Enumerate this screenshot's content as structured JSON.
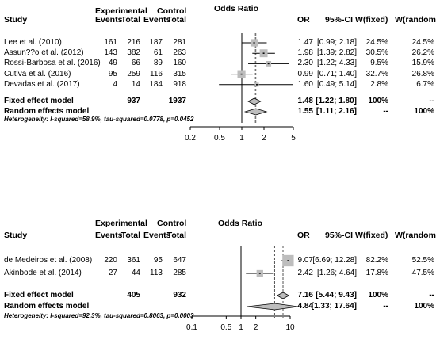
{
  "chart_data": [
    {
      "type": "forest",
      "headers": {
        "study": "Study",
        "group_exp": "Experimental",
        "group_ctrl": "Control",
        "events_exp": "Events",
        "total_exp": "Total",
        "events_ctrl": "Events",
        "total_ctrl": "Total",
        "title": "Odds Ratio",
        "or": "OR",
        "ci": "95%-CI",
        "w_fixed": "W(fixed)",
        "w_random": "W(random)"
      },
      "studies": [
        {
          "name": "Lee et al. (2010)",
          "ev_exp": "161",
          "n_exp": "216",
          "ev_ctrl": "187",
          "n_ctrl": "281",
          "or": 1.47,
          "lo": 0.99,
          "hi": 2.18,
          "or_text": "1.47",
          "ci_text": "[0.99; 2.18]",
          "w_fixed": "24.5%",
          "w_random": "24.5%",
          "weight": 24.5
        },
        {
          "name": "Assun??o et al. (2012)",
          "ev_exp": "143",
          "n_exp": "382",
          "ev_ctrl": "61",
          "n_ctrl": "263",
          "or": 1.98,
          "lo": 1.39,
          "hi": 2.82,
          "or_text": "1.98",
          "ci_text": "[1.39; 2.82]",
          "w_fixed": "30.5%",
          "w_random": "26.2%",
          "weight": 30.5
        },
        {
          "name": "Rossi-Barbosa et al. (2016)",
          "ev_exp": "49",
          "n_exp": "66",
          "ev_ctrl": "89",
          "n_ctrl": "160",
          "or": 2.3,
          "lo": 1.22,
          "hi": 4.33,
          "or_text": "2.30",
          "ci_text": "[1.22; 4.33]",
          "w_fixed": "9.5%",
          "w_random": "15.9%",
          "weight": 9.5
        },
        {
          "name": "Cutiva et al. (2016)",
          "ev_exp": "95",
          "n_exp": "259",
          "ev_ctrl": "116",
          "n_ctrl": "315",
          "or": 0.99,
          "lo": 0.71,
          "hi": 1.4,
          "or_text": "0.99",
          "ci_text": "[0.71; 1.40]",
          "w_fixed": "32.7%",
          "w_random": "26.8%",
          "weight": 32.7
        },
        {
          "name": "Devadas et al. (2017)",
          "ev_exp": "4",
          "n_exp": "14",
          "ev_ctrl": "184",
          "n_ctrl": "918",
          "or": 1.6,
          "lo": 0.49,
          "hi": 5.14,
          "or_text": "1.60",
          "ci_text": "[0.49; 5.14]",
          "w_fixed": "2.8%",
          "w_random": "6.7%",
          "weight": 2.8
        }
      ],
      "fixed": {
        "label": "Fixed effect model",
        "n_exp": "937",
        "n_ctrl": "1937",
        "or": 1.48,
        "lo": 1.22,
        "hi": 1.8,
        "or_text": "1.48",
        "ci_text": "[1.22; 1.80]",
        "w_fixed": "100%",
        "w_random": "--"
      },
      "random": {
        "label": "Random effects model",
        "or": 1.55,
        "lo": 1.11,
        "hi": 2.16,
        "or_text": "1.55",
        "ci_text": "[1.11; 2.16]",
        "w_fixed": "--",
        "w_random": "100%"
      },
      "heterogeneity": "Heterogeneity: I-squared=58.9%, tau-squared=0.0778, p=0.0452",
      "x_scale": "log",
      "x_ticks": [
        0.2,
        0.5,
        1,
        2,
        5
      ],
      "x_tick_labels": [
        "0.2",
        "0.5",
        "1",
        "2",
        "5"
      ],
      "xlim": [
        0.2,
        5
      ]
    },
    {
      "type": "forest",
      "headers": {
        "study": "Study",
        "group_exp": "Experimental",
        "group_ctrl": "Control",
        "events_exp": "Events",
        "total_exp": "Total",
        "events_ctrl": "Events",
        "total_ctrl": "Total",
        "title": "Odds Ratio",
        "or": "OR",
        "ci": "95%-CI",
        "w_fixed": "W(fixed)",
        "w_random": "W(random)"
      },
      "studies": [
        {
          "name": "de Medeiros et al. (2008)",
          "ev_exp": "220",
          "n_exp": "361",
          "ev_ctrl": "95",
          "n_ctrl": "647",
          "or": 9.07,
          "lo": 6.69,
          "hi": 12.28,
          "or_text": "9.07",
          "ci_text": "[6.69; 12.28]",
          "w_fixed": "82.2%",
          "w_random": "52.5%",
          "weight": 82.2
        },
        {
          "name": "Akinbode et al. (2014)",
          "ev_exp": "27",
          "n_exp": "44",
          "ev_ctrl": "113",
          "n_ctrl": "285",
          "or": 2.42,
          "lo": 1.26,
          "hi": 4.64,
          "or_text": "2.42",
          "ci_text": "[1.26; 4.64]",
          "w_fixed": "17.8%",
          "w_random": "47.5%",
          "weight": 17.8
        }
      ],
      "fixed": {
        "label": "Fixed effect model",
        "n_exp": "405",
        "n_ctrl": "932",
        "or": 7.16,
        "lo": 5.44,
        "hi": 9.43,
        "or_text": "7.16",
        "ci_text": "[5.44; 9.43]",
        "w_fixed": "100%",
        "w_random": "--"
      },
      "random": {
        "label": "Random effects model",
        "or": 4.84,
        "lo": 1.33,
        "hi": 17.64,
        "or_text": "4.84",
        "ci_text": "[1.33; 17.64]",
        "w_fixed": "--",
        "w_random": "100%"
      },
      "heterogeneity": "Heterogeneity: I-squared=92.3%, tau-squared=0.8063, p=0.0003",
      "x_scale": "log",
      "x_ticks": [
        0.1,
        0.5,
        1,
        2,
        10
      ],
      "x_tick_labels": [
        "0.1",
        "0.5",
        "1",
        "2",
        "10"
      ],
      "xlim": [
        0.1,
        10
      ]
    }
  ]
}
